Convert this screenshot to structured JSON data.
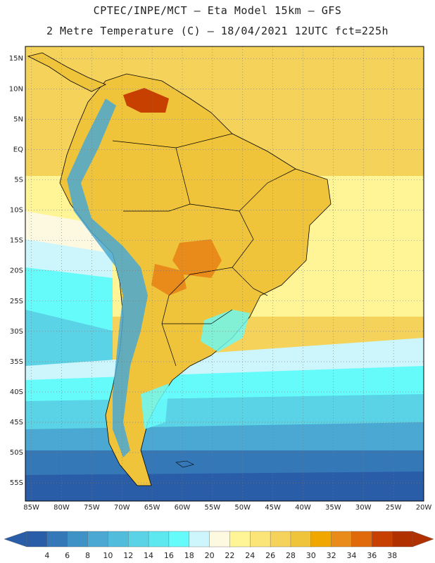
{
  "header": {
    "line1": "CPTEC/INPE/MCT –  Eta Model 15km – GFS",
    "line2": "2 Metre Temperature (C) – 18/04/2021 12UTC fct=225h"
  },
  "map": {
    "lat_labels": [
      "15N",
      "10N",
      "5N",
      "EQ",
      "5S",
      "10S",
      "15S",
      "20S",
      "25S",
      "30S",
      "35S",
      "40S",
      "45S",
      "50S",
      "55S"
    ],
    "lon_labels": [
      "85W",
      "80W",
      "75W",
      "70W",
      "65W",
      "60W",
      "55W",
      "50W",
      "45W",
      "40W",
      "35W",
      "30W",
      "25W",
      "20W"
    ]
  },
  "colorbar": {
    "labels": [
      "4",
      "6",
      "8",
      "10",
      "12",
      "14",
      "16",
      "18",
      "20",
      "22",
      "24",
      "26",
      "28",
      "30",
      "32",
      "34",
      "36",
      "38"
    ],
    "colors": [
      "#2a5da8",
      "#3478b8",
      "#3f92c5",
      "#4aa8d2",
      "#52bcdc",
      "#5ad3e6",
      "#5de8f0",
      "#66fbfb",
      "#ccf6fb",
      "#fdf8e0",
      "#fff496",
      "#fbe478",
      "#f5d25a",
      "#f0c43a",
      "#f0a800",
      "#e88b1a",
      "#e06a0a",
      "#c84000",
      "#b03000"
    ],
    "left_arrow_color": "#2a5da8",
    "right_arrow_color": "#b03000"
  },
  "palette": {
    "ocean_warm": "#f5d25a",
    "ocean_mid": "#fff496",
    "ocean_cool": "#fdf8e0",
    "ocean_cold1": "#ccf6fb",
    "ocean_cold2": "#66fbfb",
    "ocean_cold3": "#5ad3e6",
    "ocean_cold4": "#4aa8d2",
    "ocean_cold5": "#3478b8",
    "ocean_cold6": "#2a5da8",
    "land_hot": "#f0c43a",
    "land_very_hot": "#e88b1a",
    "land_extreme": "#c84000",
    "andes": "#4aa8d2",
    "border": "#000000",
    "grid": "#777777"
  }
}
